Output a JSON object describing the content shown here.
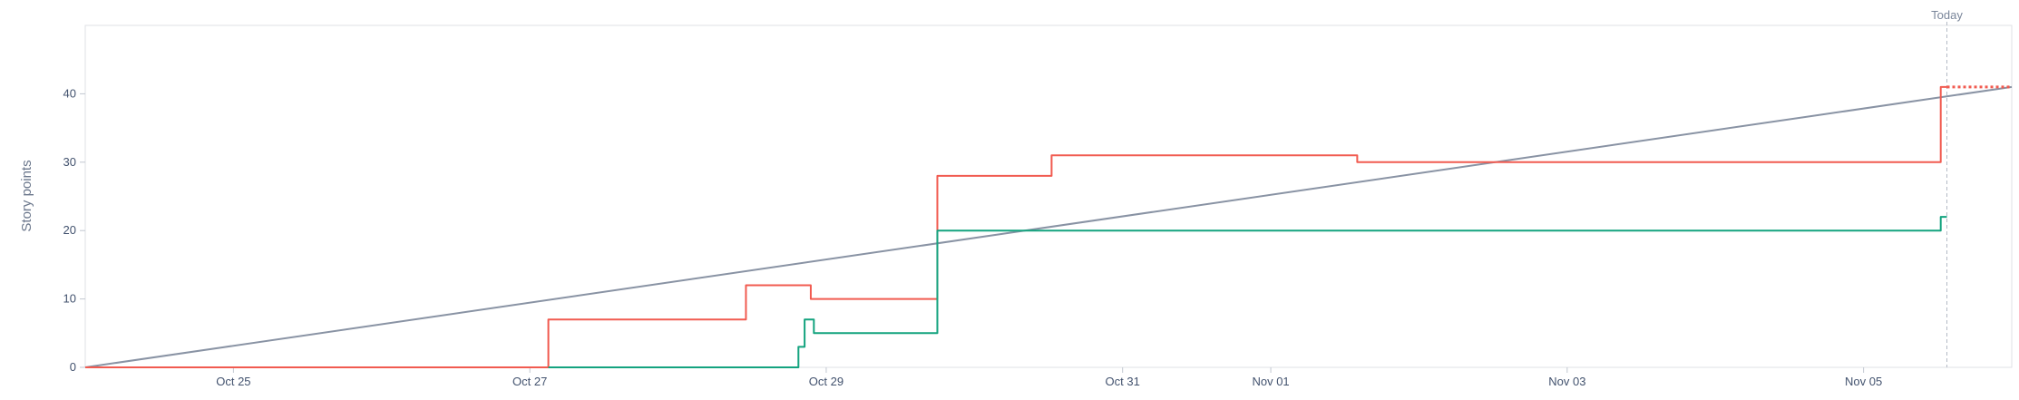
{
  "chart_data": {
    "type": "line",
    "title": "",
    "xlabel": "",
    "ylabel": "Story points",
    "today_label": "Today",
    "ylim": [
      0,
      50
    ],
    "xlim": [
      "2025-10-24T00:00",
      "2025-11-06T00:00"
    ],
    "y_ticks": [
      0,
      10,
      20,
      30,
      40
    ],
    "x_ticks": [
      {
        "label": "Oct 25",
        "date": "2025-10-25T00:00"
      },
      {
        "label": "Oct 27",
        "date": "2025-10-27T00:00"
      },
      {
        "label": "Oct 29",
        "date": "2025-10-29T00:00"
      },
      {
        "label": "Oct 31",
        "date": "2025-10-31T00:00"
      },
      {
        "label": "Nov 01",
        "date": "2025-11-01T00:00"
      },
      {
        "label": "Nov 03",
        "date": "2025-11-03T00:00"
      },
      {
        "label": "Nov 05",
        "date": "2025-11-05T00:00"
      }
    ],
    "today": "2025-11-05T13:30",
    "grid": false,
    "series": [
      {
        "key": "guideline",
        "color": "#8993a4",
        "style": "line",
        "points": [
          {
            "x": "2025-10-24T00:00",
            "y": 0
          },
          {
            "x": "2025-11-06T00:00",
            "y": 41
          }
        ]
      },
      {
        "key": "scope",
        "color": "#f15b50",
        "style": "step",
        "points": [
          {
            "x": "2025-10-24T00:00",
            "y": 0
          },
          {
            "x": "2025-10-27T03:00",
            "y": 7
          },
          {
            "x": "2025-10-28T11:00",
            "y": 12
          },
          {
            "x": "2025-10-28T21:30",
            "y": 10
          },
          {
            "x": "2025-10-29T18:00",
            "y": 28
          },
          {
            "x": "2025-10-30T12:30",
            "y": 31
          },
          {
            "x": "2025-11-01T14:00",
            "y": 30
          },
          {
            "x": "2025-11-05T12:30",
            "y": 41
          },
          {
            "x": "2025-11-05T13:30",
            "y": 41
          }
        ],
        "forecast_to": "2025-11-06T00:00",
        "forecast_style": "dotted"
      },
      {
        "key": "completed",
        "color": "#14a37f",
        "style": "step",
        "points": [
          {
            "x": "2025-10-27T03:00",
            "y": 0
          },
          {
            "x": "2025-10-28T19:30",
            "y": 3
          },
          {
            "x": "2025-10-28T20:30",
            "y": 7
          },
          {
            "x": "2025-10-28T22:00",
            "y": 5
          },
          {
            "x": "2025-10-29T18:00",
            "y": 20
          },
          {
            "x": "2025-11-05T12:30",
            "y": 22
          },
          {
            "x": "2025-11-05T13:30",
            "y": 22
          }
        ]
      }
    ]
  }
}
